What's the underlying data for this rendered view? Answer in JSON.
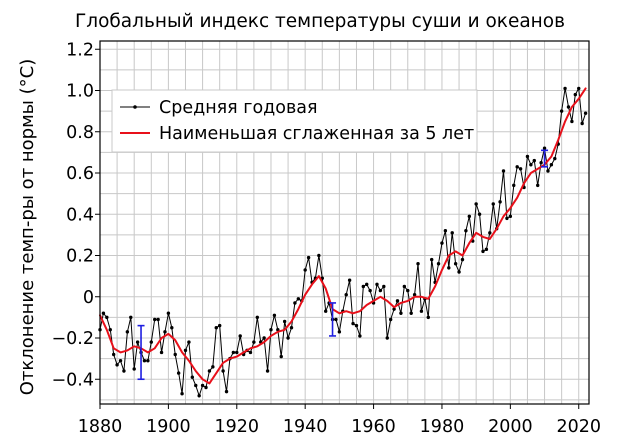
{
  "chart_data": {
    "type": "line",
    "title": "Глобальный индекс температуры суши и океанов",
    "xlabel": "",
    "ylabel": "Отклонение темп-ры от нормы (°C)",
    "xlim": [
      1880,
      2023
    ],
    "ylim": [
      -0.52,
      1.24
    ],
    "x_ticks": [
      "1880",
      "1900",
      "1920",
      "1940",
      "1960",
      "1980",
      "2000",
      "2020"
    ],
    "y_ticks": [
      "−0.4",
      "−0.2",
      "0",
      "0.2",
      "0.4",
      "0.6",
      "0.8",
      "1.0",
      "1.2"
    ],
    "grid": true,
    "legend_position": "top-left",
    "colors": {
      "annual": "#000000",
      "smoothed": "#e8101a",
      "error_bars": "#1e1ee0",
      "grid": "#c8c8c8"
    },
    "series": [
      {
        "name": "Средняя годовая",
        "style": "line-with-markers",
        "x": [
          1880,
          1881,
          1882,
          1883,
          1884,
          1885,
          1886,
          1887,
          1888,
          1889,
          1890,
          1891,
          1892,
          1893,
          1894,
          1895,
          1896,
          1897,
          1898,
          1899,
          1900,
          1901,
          1902,
          1903,
          1904,
          1905,
          1906,
          1907,
          1908,
          1909,
          1910,
          1911,
          1912,
          1913,
          1914,
          1915,
          1916,
          1917,
          1918,
          1919,
          1920,
          1921,
          1922,
          1923,
          1924,
          1925,
          1926,
          1927,
          1928,
          1929,
          1930,
          1931,
          1932,
          1933,
          1934,
          1935,
          1936,
          1937,
          1938,
          1939,
          1940,
          1941,
          1942,
          1943,
          1944,
          1945,
          1946,
          1947,
          1948,
          1949,
          1950,
          1951,
          1952,
          1953,
          1954,
          1955,
          1956,
          1957,
          1958,
          1959,
          1960,
          1961,
          1962,
          1963,
          1964,
          1965,
          1966,
          1967,
          1968,
          1969,
          1970,
          1971,
          1972,
          1973,
          1974,
          1975,
          1976,
          1977,
          1978,
          1979,
          1980,
          1981,
          1982,
          1983,
          1984,
          1985,
          1986,
          1987,
          1988,
          1989,
          1990,
          1991,
          1992,
          1993,
          1994,
          1995,
          1996,
          1997,
          1998,
          1999,
          2000,
          2001,
          2002,
          2003,
          2004,
          2005,
          2006,
          2007,
          2008,
          2009,
          2010,
          2011,
          2012,
          2013,
          2014,
          2015,
          2016,
          2017,
          2018,
          2019,
          2020,
          2021,
          2022
        ],
        "values": [
          -0.16,
          -0.08,
          -0.1,
          -0.16,
          -0.28,
          -0.33,
          -0.31,
          -0.36,
          -0.17,
          -0.1,
          -0.35,
          -0.22,
          -0.27,
          -0.31,
          -0.31,
          -0.22,
          -0.11,
          -0.11,
          -0.27,
          -0.17,
          -0.08,
          -0.15,
          -0.28,
          -0.37,
          -0.47,
          -0.26,
          -0.22,
          -0.39,
          -0.43,
          -0.48,
          -0.43,
          -0.44,
          -0.36,
          -0.34,
          -0.15,
          -0.14,
          -0.36,
          -0.46,
          -0.3,
          -0.27,
          -0.27,
          -0.19,
          -0.28,
          -0.26,
          -0.27,
          -0.22,
          -0.1,
          -0.22,
          -0.2,
          -0.36,
          -0.16,
          -0.09,
          -0.16,
          -0.29,
          -0.12,
          -0.2,
          -0.15,
          -0.03,
          -0.01,
          -0.02,
          0.13,
          0.19,
          0.07,
          0.09,
          0.2,
          0.09,
          -0.07,
          -0.03,
          -0.11,
          -0.11,
          -0.17,
          -0.07,
          0.01,
          0.08,
          -0.13,
          -0.14,
          -0.19,
          0.05,
          0.06,
          0.03,
          -0.03,
          0.06,
          0.03,
          0.05,
          -0.2,
          -0.11,
          -0.06,
          -0.02,
          -0.08,
          0.05,
          0.03,
          -0.08,
          0.01,
          0.16,
          -0.07,
          -0.01,
          -0.1,
          0.18,
          0.07,
          0.16,
          0.26,
          0.32,
          0.14,
          0.31,
          0.16,
          0.12,
          0.18,
          0.32,
          0.39,
          0.27,
          0.45,
          0.4,
          0.22,
          0.23,
          0.31,
          0.45,
          0.33,
          0.46,
          0.61,
          0.38,
          0.39,
          0.54,
          0.63,
          0.62,
          0.53,
          0.68,
          0.64,
          0.66,
          0.54,
          0.65,
          0.72,
          0.61,
          0.64,
          0.67,
          0.74,
          0.9,
          1.01,
          0.92,
          0.85,
          0.98,
          1.01,
          0.84,
          0.89
        ]
      },
      {
        "name": "Наименьшая сглаженная за 5 лет",
        "style": "line",
        "x": [
          1880,
          1882,
          1884,
          1886,
          1888,
          1890,
          1892,
          1894,
          1896,
          1898,
          1900,
          1902,
          1904,
          1906,
          1908,
          1910,
          1912,
          1914,
          1916,
          1918,
          1920,
          1922,
          1924,
          1926,
          1928,
          1930,
          1932,
          1934,
          1936,
          1938,
          1940,
          1942,
          1944,
          1946,
          1948,
          1950,
          1952,
          1954,
          1956,
          1958,
          1960,
          1962,
          1964,
          1966,
          1968,
          1970,
          1972,
          1974,
          1976,
          1978,
          1980,
          1982,
          1984,
          1986,
          1988,
          1990,
          1992,
          1994,
          1996,
          1998,
          2000,
          2002,
          2004,
          2006,
          2008,
          2010,
          2012,
          2014,
          2016,
          2018,
          2020,
          2022
        ],
        "values": [
          -0.09,
          -0.16,
          -0.25,
          -0.27,
          -0.26,
          -0.24,
          -0.25,
          -0.27,
          -0.25,
          -0.2,
          -0.18,
          -0.21,
          -0.27,
          -0.31,
          -0.36,
          -0.4,
          -0.42,
          -0.37,
          -0.32,
          -0.3,
          -0.29,
          -0.27,
          -0.25,
          -0.24,
          -0.22,
          -0.19,
          -0.17,
          -0.16,
          -0.12,
          -0.06,
          0.01,
          0.06,
          0.1,
          0.04,
          -0.06,
          -0.08,
          -0.07,
          -0.08,
          -0.07,
          -0.04,
          -0.02,
          0.0,
          -0.02,
          -0.05,
          -0.03,
          -0.02,
          0.0,
          0.0,
          -0.01,
          0.05,
          0.13,
          0.2,
          0.22,
          0.2,
          0.26,
          0.31,
          0.29,
          0.28,
          0.33,
          0.39,
          0.43,
          0.48,
          0.55,
          0.6,
          0.62,
          0.64,
          0.68,
          0.76,
          0.85,
          0.92,
          0.96,
          1.01
        ]
      }
    ],
    "error_bars": [
      {
        "x": 1892,
        "low": -0.4,
        "high": -0.14
      },
      {
        "x": 1948,
        "low": -0.19,
        "high": -0.03
      },
      {
        "x": 2010,
        "low": 0.63,
        "high": 0.71
      }
    ]
  }
}
